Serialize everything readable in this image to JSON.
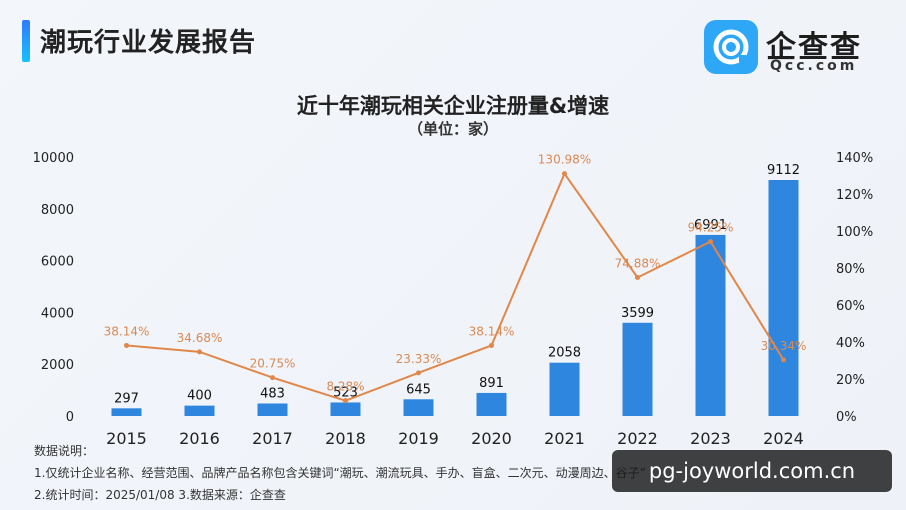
{
  "header": {
    "title": "潮玩行业发展报告"
  },
  "brand": {
    "name": "企查查",
    "domain": "Qcc.com"
  },
  "chart_data": {
    "type": "bar",
    "title": "近十年潮玩相关企业注册量&增速",
    "subtitle": "（单位：家）",
    "categories": [
      "2015",
      "2016",
      "2017",
      "2018",
      "2019",
      "2020",
      "2021",
      "2022",
      "2023",
      "2024"
    ],
    "series": [
      {
        "name": "",
        "type": "bar",
        "values": [
          297,
          400,
          483,
          523,
          645,
          891,
          2058,
          3599,
          6991,
          9112
        ],
        "labels": [
          "297",
          "400",
          "483",
          "523",
          "645",
          "891",
          "2058",
          "3599",
          "6991",
          "9112"
        ]
      },
      {
        "name": "",
        "type": "line",
        "values": [
          38.14,
          34.68,
          20.75,
          8.28,
          23.33,
          38.14,
          130.98,
          74.88,
          94.25,
          30.34
        ],
        "labels": [
          "38.14%",
          "34.68%",
          "20.75%",
          "8.28%",
          "23.33%",
          "38.14%",
          "130.98%",
          "74.88%",
          "94.25%",
          "30.34%"
        ]
      }
    ],
    "y_left": {
      "min": 0,
      "max": 10000,
      "ticks": [
        "0",
        "2000",
        "4000",
        "6000",
        "8000",
        "10000"
      ]
    },
    "y_right": {
      "min": 0,
      "max": 140,
      "ticks": [
        "0%",
        "20%",
        "40%",
        "60%",
        "80%",
        "100%",
        "120%",
        "140%"
      ]
    },
    "grid": false,
    "colors": {
      "bar": "#2e86de",
      "line": "#e0874a",
      "line_label": "#d98a54"
    }
  },
  "notes": {
    "heading": "数据说明：",
    "line1": "1.仅统计企业名称、经营范围、品牌产品名称包含关键词“潮玩、潮流玩具、手办、盲盒、二次元、动漫周边、谷子”",
    "line2": "2.统计时间：2025/01/08   3.数据来源：企查查"
  },
  "watermark": "pg-joyworld.com.cn"
}
